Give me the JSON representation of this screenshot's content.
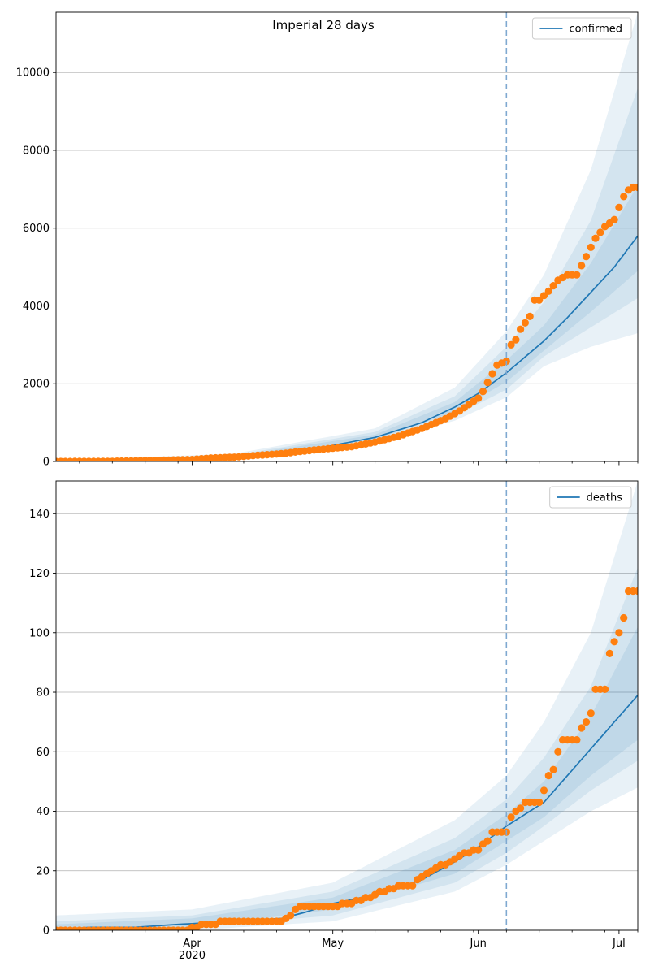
{
  "figure": {
    "title": "Imperial 28 days"
  },
  "chart_data": [
    {
      "type": "line",
      "panel": "top",
      "legend": [
        "confirmed"
      ],
      "legend_placement": "top-right",
      "grid": "horizontal",
      "ylim": [
        0,
        11550
      ],
      "yticks": [
        0,
        2000,
        4000,
        6000,
        8000,
        10000
      ],
      "ytick_labels": [
        "0",
        "2000",
        "4000",
        "6000",
        "8000",
        "10000"
      ],
      "xlim": [
        "2020-03-03",
        "2020-07-05"
      ],
      "xtick_labels": [],
      "forecast_start": "2020-06-07",
      "series": [
        {
          "name": "confirmed",
          "kind": "model_median",
          "x": [
            "2020-03-03",
            "2020-03-15",
            "2020-03-25",
            "2020-04-01",
            "2020-04-10",
            "2020-04-20",
            "2020-04-30",
            "2020-05-10",
            "2020-05-20",
            "2020-05-27",
            "2020-06-01",
            "2020-06-07",
            "2020-06-15",
            "2020-06-20",
            "2020-06-25",
            "2020-06-30",
            "2020-07-05"
          ],
          "y": [
            5,
            15,
            40,
            60,
            120,
            220,
            390,
            620,
            1000,
            1400,
            1750,
            2280,
            3100,
            3700,
            4350,
            5000,
            5800
          ]
        },
        {
          "name": "",
          "kind": "observed",
          "x": [
            "2020-03-03",
            "2020-03-15",
            "2020-03-25",
            "2020-04-01",
            "2020-04-05",
            "2020-04-10",
            "2020-04-15",
            "2020-04-20",
            "2020-04-25",
            "2020-04-30",
            "2020-05-05",
            "2020-05-10",
            "2020-05-15",
            "2020-05-20",
            "2020-05-25",
            "2020-05-28",
            "2020-06-01",
            "2020-06-02",
            "2020-06-03",
            "2020-06-05",
            "2020-06-07",
            "2020-06-08",
            "2020-06-09",
            "2020-06-10",
            "2020-06-12",
            "2020-06-13",
            "2020-06-14",
            "2020-06-16",
            "2020-06-18",
            "2020-06-20",
            "2020-06-22",
            "2020-06-24",
            "2020-06-26",
            "2020-06-28",
            "2020-06-30",
            "2020-07-01",
            "2020-07-02",
            "2020-07-03",
            "2020-07-04",
            "2020-07-05"
          ],
          "y": [
            0,
            5,
            30,
            50,
            90,
            110,
            160,
            200,
            270,
            330,
            380,
            500,
            650,
            850,
            1100,
            1300,
            1630,
            1800,
            2030,
            2480,
            2580,
            3000,
            3130,
            3400,
            3730,
            4150,
            4150,
            4380,
            4660,
            4800,
            4800,
            5270,
            5740,
            6040,
            6220,
            6530,
            6810,
            6980,
            7050,
            7050
          ]
        }
      ],
      "bands": [
        {
          "x": [
            "2020-03-03",
            "2020-04-10",
            "2020-05-10",
            "2020-05-27",
            "2020-06-07",
            "2020-06-15",
            "2020-06-25",
            "2020-07-05"
          ],
          "lower": [
            0,
            80,
            470,
            1050,
            1650,
            2450,
            2950,
            3300
          ],
          "upper": [
            30,
            200,
            850,
            1900,
            3350,
            4800,
            7500,
            11550
          ]
        },
        {
          "x": [
            "2020-03-03",
            "2020-04-10",
            "2020-05-10",
            "2020-05-27",
            "2020-06-07",
            "2020-06-15",
            "2020-06-25",
            "2020-07-05"
          ],
          "lower": [
            2,
            95,
            520,
            1180,
            1850,
            2700,
            3450,
            4200
          ],
          "upper": [
            20,
            165,
            760,
            1680,
            2950,
            4100,
            6200,
            9600
          ]
        },
        {
          "x": [
            "2020-03-03",
            "2020-04-10",
            "2020-05-10",
            "2020-05-27",
            "2020-06-07",
            "2020-06-15",
            "2020-06-25",
            "2020-07-05"
          ],
          "lower": [
            4,
            108,
            570,
            1280,
            2050,
            2850,
            3850,
            4900
          ],
          "upper": [
            10,
            140,
            690,
            1530,
            2600,
            3500,
            5100,
            7100
          ]
        }
      ]
    },
    {
      "type": "line",
      "panel": "bottom",
      "legend": [
        "deaths"
      ],
      "legend_placement": "top-right",
      "grid": "horizontal",
      "ylim": [
        0,
        151
      ],
      "yticks": [
        0,
        20,
        40,
        60,
        80,
        100,
        120,
        140
      ],
      "ytick_labels": [
        "0",
        "20",
        "40",
        "60",
        "80",
        "100",
        "120",
        "140"
      ],
      "xlim": [
        "2020-03-03",
        "2020-07-05"
      ],
      "xticks": [
        "2020-04-01",
        "2020-05-01",
        "2020-06-01",
        "2020-07-01"
      ],
      "xtick_labels": [
        "Apr\n2020",
        "May",
        "Jun",
        "Jul"
      ],
      "forecast_start": "2020-06-07",
      "series": [
        {
          "name": "deaths",
          "kind": "model_median",
          "x": [
            "2020-03-03",
            "2020-03-10",
            "2020-03-20",
            "2020-03-29",
            "2020-04-10",
            "2020-04-20",
            "2020-04-25",
            "2020-05-01",
            "2020-05-10",
            "2020-05-20",
            "2020-05-27",
            "2020-06-01",
            "2020-06-07",
            "2020-06-15",
            "2020-06-20",
            "2020-06-25",
            "2020-06-30",
            "2020-07-05"
          ],
          "y": [
            0,
            1,
            1,
            2,
            3,
            4,
            6,
            9,
            12,
            17,
            23,
            28,
            35,
            43,
            52,
            61,
            70,
            79
          ]
        },
        {
          "name": "",
          "kind": "observed",
          "x": [
            "2020-03-03",
            "2020-03-15",
            "2020-03-31",
            "2020-04-02",
            "2020-04-04",
            "2020-04-10",
            "2020-04-20",
            "2020-04-22",
            "2020-04-24",
            "2020-04-30",
            "2020-05-05",
            "2020-05-10",
            "2020-05-15",
            "2020-05-18",
            "2020-05-20",
            "2020-05-23",
            "2020-05-26",
            "2020-05-28",
            "2020-06-01",
            "2020-06-03",
            "2020-06-04",
            "2020-06-07",
            "2020-06-08",
            "2020-06-10",
            "2020-06-11",
            "2020-06-14",
            "2020-06-15",
            "2020-06-16",
            "2020-06-17",
            "2020-06-18",
            "2020-06-19",
            "2020-06-22",
            "2020-06-23",
            "2020-06-24",
            "2020-06-25",
            "2020-06-26",
            "2020-06-28",
            "2020-06-29",
            "2020-06-30",
            "2020-07-01",
            "2020-07-02",
            "2020-07-03",
            "2020-07-04",
            "2020-07-05"
          ],
          "y": [
            0,
            0,
            0,
            1,
            2,
            3,
            3,
            5,
            8,
            8,
            9,
            12,
            15,
            15,
            18,
            21,
            23,
            25,
            27,
            30,
            33,
            33,
            38,
            41,
            43,
            43,
            47,
            52,
            54,
            60,
            64,
            64,
            68,
            70,
            73,
            81,
            81,
            93,
            97,
            100,
            105,
            114,
            114,
            114
          ]
        }
      ],
      "bands": [
        {
          "x": [
            "2020-03-03",
            "2020-04-01",
            "2020-05-01",
            "2020-05-27",
            "2020-06-07",
            "2020-06-15",
            "2020-06-25",
            "2020-07-05"
          ],
          "lower": [
            0,
            0,
            3,
            13,
            22,
            30,
            40,
            48
          ],
          "upper": [
            5,
            7,
            16,
            37,
            52,
            70,
            100,
            151
          ]
        },
        {
          "x": [
            "2020-03-03",
            "2020-04-01",
            "2020-05-01",
            "2020-05-27",
            "2020-06-07",
            "2020-06-15",
            "2020-06-25",
            "2020-07-05"
          ],
          "lower": [
            0,
            1,
            5,
            16,
            26,
            35,
            47,
            57
          ],
          "upper": [
            3,
            5,
            13,
            31,
            44,
            58,
            82,
            122
          ]
        },
        {
          "x": [
            "2020-03-03",
            "2020-04-01",
            "2020-05-01",
            "2020-05-27",
            "2020-06-07",
            "2020-06-15",
            "2020-06-25",
            "2020-07-05"
          ],
          "lower": [
            0,
            1,
            7,
            19,
            30,
            38,
            52,
            64
          ],
          "upper": [
            2,
            4,
            11,
            27,
            39,
            50,
            72,
            102
          ]
        }
      ]
    }
  ],
  "colors": {
    "median_line": "#1f77b4",
    "observed_points": "#ff7f0e",
    "band": "#1f77b4",
    "forecast_line": "#7fa9d1",
    "grid": "#b0b0b0"
  }
}
